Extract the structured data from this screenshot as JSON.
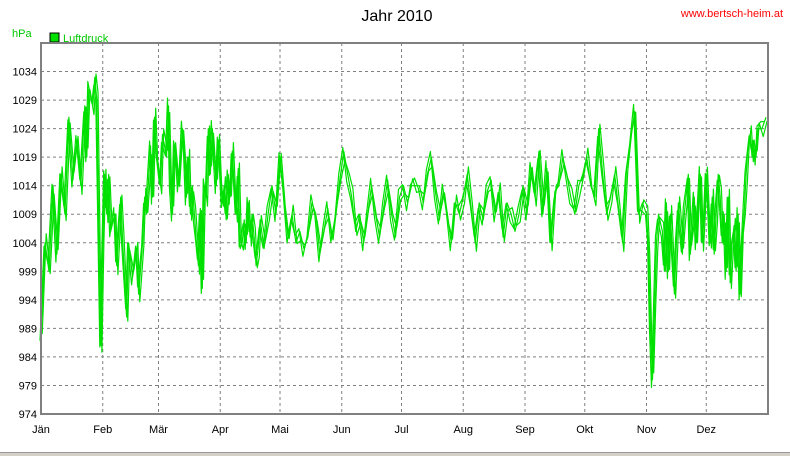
{
  "source_label": "www.bertsch-heim.at",
  "colors": {
    "series": "#00e000",
    "legend_box": "#00e000",
    "legend_text": "#00c800",
    "unit": "#00c800",
    "grid": "#808080",
    "source": "#ff0000"
  },
  "chart_data": {
    "type": "line",
    "title": "Jahr 2010",
    "ylabel": "hPa",
    "xlabel": "",
    "ylim": [
      974,
      1039
    ],
    "yticks": [
      974,
      979,
      984,
      989,
      994,
      999,
      1004,
      1009,
      1014,
      1019,
      1024,
      1029,
      1034
    ],
    "xlim": [
      0,
      365
    ],
    "months": [
      {
        "label": "Jän",
        "day": 0
      },
      {
        "label": "Feb",
        "day": 31
      },
      {
        "label": "Mär",
        "day": 59
      },
      {
        "label": "Apr",
        "day": 90
      },
      {
        "label": "Mai",
        "day": 120
      },
      {
        "label": "Jun",
        "day": 151
      },
      {
        "label": "Jul",
        "day": 181
      },
      {
        "label": "Aug",
        "day": 212
      },
      {
        "label": "Sep",
        "day": 243
      },
      {
        "label": "Okt",
        "day": 273
      },
      {
        "label": "Nov",
        "day": 304
      },
      {
        "label": "Dez",
        "day": 334
      }
    ],
    "grid": true,
    "legend_placement": "top-left",
    "series": [
      {
        "name": "Luftdruck",
        "points": [
          [
            0,
            988
          ],
          [
            2,
            1004
          ],
          [
            4,
            999
          ],
          [
            6,
            1014
          ],
          [
            8,
            1002
          ],
          [
            10,
            1016
          ],
          [
            12,
            1009
          ],
          [
            14,
            1026
          ],
          [
            16,
            1015
          ],
          [
            18,
            1022
          ],
          [
            20,
            1014
          ],
          [
            22,
            1028
          ],
          [
            23,
            1019
          ],
          [
            24,
            1031
          ],
          [
            26,
            1028
          ],
          [
            27,
            1033
          ],
          [
            28,
            1029
          ],
          [
            29,
            1006
          ],
          [
            30,
            986
          ],
          [
            31,
            1003
          ],
          [
            32,
            1016
          ],
          [
            33,
            1009
          ],
          [
            34,
            1016
          ],
          [
            35,
            1006
          ],
          [
            37,
            1009
          ],
          [
            38,
            1000
          ],
          [
            40,
            1012
          ],
          [
            41,
            1004
          ],
          [
            43,
            991
          ],
          [
            44,
            1004
          ],
          [
            46,
            998
          ],
          [
            48,
            1003
          ],
          [
            49,
            995
          ],
          [
            51,
            1004
          ],
          [
            52,
            1012
          ],
          [
            53,
            1009
          ],
          [
            55,
            1021
          ],
          [
            56,
            1012
          ],
          [
            57,
            1026
          ],
          [
            58,
            1019
          ],
          [
            60,
            1014
          ],
          [
            61,
            1023
          ],
          [
            63,
            1019
          ],
          [
            64,
            1028
          ],
          [
            65,
            1014
          ],
          [
            66,
            1009
          ],
          [
            67,
            1021
          ],
          [
            68,
            1019
          ],
          [
            69,
            1014
          ],
          [
            70,
            1018
          ],
          [
            71,
            1024
          ],
          [
            72,
            1020
          ],
          [
            73,
            1012
          ],
          [
            74,
            1019
          ],
          [
            75,
            1009
          ],
          [
            76,
            1014
          ],
          [
            77,
            1009
          ],
          [
            78,
            1004
          ],
          [
            79,
            1000
          ],
          [
            80,
            1010
          ],
          [
            81,
            996
          ],
          [
            82,
            1014
          ],
          [
            83,
            1012
          ],
          [
            84,
            1024
          ],
          [
            85,
            1016
          ],
          [
            86,
            1024
          ],
          [
            87,
            1019
          ],
          [
            88,
            1014
          ],
          [
            89,
            1022
          ],
          [
            90,
            1016
          ],
          [
            91,
            1011
          ],
          [
            92,
            1014
          ],
          [
            93,
            1008
          ],
          [
            94,
            1016
          ],
          [
            95,
            1012
          ],
          [
            96,
            1020
          ],
          [
            97,
            1014
          ],
          [
            98,
            1009
          ],
          [
            99,
            1017
          ],
          [
            100,
            1003
          ],
          [
            101,
            1004
          ],
          [
            102,
            1008
          ],
          [
            103,
            1004
          ],
          [
            104,
            1011
          ],
          [
            105,
            1005
          ],
          [
            106,
            1009
          ],
          [
            107,
            1005
          ],
          [
            108,
            1000
          ],
          [
            109,
            1003
          ],
          [
            110,
            1008
          ],
          [
            112,
            1003
          ],
          [
            114,
            1009
          ],
          [
            116,
            1014
          ],
          [
            118,
            1009
          ],
          [
            120,
            1019
          ],
          [
            122,
            1012
          ],
          [
            124,
            1005
          ],
          [
            126,
            1009
          ],
          [
            128,
            1004
          ],
          [
            130,
            1006
          ],
          [
            132,
            1003
          ],
          [
            134,
            1005
          ],
          [
            136,
            1011
          ],
          [
            138,
            1009
          ],
          [
            140,
            1002
          ],
          [
            142,
            1006
          ],
          [
            144,
            1010
          ],
          [
            146,
            1005
          ],
          [
            148,
            1009
          ],
          [
            150,
            1015
          ],
          [
            152,
            1020
          ],
          [
            154,
            1016
          ],
          [
            156,
            1012
          ],
          [
            158,
            1006
          ],
          [
            160,
            1009
          ],
          [
            162,
            1004
          ],
          [
            164,
            1009
          ],
          [
            166,
            1014
          ],
          [
            168,
            1009
          ],
          [
            170,
            1005
          ],
          [
            172,
            1010
          ],
          [
            174,
            1015
          ],
          [
            176,
            1009
          ],
          [
            178,
            1005
          ],
          [
            180,
            1012
          ],
          [
            182,
            1014
          ],
          [
            184,
            1011
          ],
          [
            186,
            1014
          ],
          [
            188,
            1014
          ],
          [
            190,
            1014
          ],
          [
            192,
            1011
          ],
          [
            194,
            1016
          ],
          [
            196,
            1019
          ],
          [
            198,
            1013
          ],
          [
            200,
            1008
          ],
          [
            202,
            1013
          ],
          [
            204,
            1009
          ],
          [
            206,
            1004
          ],
          [
            208,
            1011
          ],
          [
            210,
            1009
          ],
          [
            212,
            1012
          ],
          [
            214,
            1016
          ],
          [
            216,
            1010
          ],
          [
            218,
            1004
          ],
          [
            220,
            1011
          ],
          [
            222,
            1008
          ],
          [
            224,
            1013
          ],
          [
            226,
            1015
          ],
          [
            228,
            1009
          ],
          [
            230,
            1013
          ],
          [
            232,
            1005
          ],
          [
            234,
            1011
          ],
          [
            236,
            1009
          ],
          [
            238,
            1006
          ],
          [
            240,
            1009
          ],
          [
            242,
            1014
          ],
          [
            244,
            1009
          ],
          [
            246,
            1017
          ],
          [
            248,
            1012
          ],
          [
            250,
            1020
          ],
          [
            252,
            1009
          ],
          [
            254,
            1017
          ],
          [
            256,
            1004
          ],
          [
            258,
            1013
          ],
          [
            260,
            1014
          ],
          [
            262,
            1019
          ],
          [
            264,
            1016
          ],
          [
            266,
            1012
          ],
          [
            268,
            1009
          ],
          [
            270,
            1014
          ],
          [
            272,
            1016
          ],
          [
            274,
            1019
          ],
          [
            276,
            1014
          ],
          [
            278,
            1012
          ],
          [
            280,
            1024
          ],
          [
            282,
            1016
          ],
          [
            284,
            1009
          ],
          [
            286,
            1012
          ],
          [
            288,
            1016
          ],
          [
            290,
            1010
          ],
          [
            292,
            1004
          ],
          [
            294,
            1017
          ],
          [
            296,
            1022
          ],
          [
            298,
            1027
          ],
          [
            300,
            1009
          ],
          [
            302,
            1011
          ],
          [
            304,
            1009
          ],
          [
            305,
            1003
          ],
          [
            306,
            989
          ],
          [
            307,
            980
          ],
          [
            308,
            992
          ],
          [
            309,
            1004
          ],
          [
            310,
            1009
          ],
          [
            312,
            1006
          ],
          [
            313,
            999
          ],
          [
            314,
            1011
          ],
          [
            315,
            999
          ],
          [
            316,
            1009
          ],
          [
            318,
            995
          ],
          [
            319,
            1004
          ],
          [
            320,
            1011
          ],
          [
            322,
            1002
          ],
          [
            323,
            1009
          ],
          [
            325,
            1016
          ],
          [
            326,
            1002
          ],
          [
            327,
            1006
          ],
          [
            328,
            1012
          ],
          [
            329,
            1004
          ],
          [
            330,
            1011
          ],
          [
            331,
            1016
          ],
          [
            332,
            1004
          ],
          [
            333,
            1009
          ],
          [
            334,
            1016
          ],
          [
            335,
            1010
          ],
          [
            336,
            1004
          ],
          [
            337,
            1012
          ],
          [
            338,
            1002
          ],
          [
            339,
            1009
          ],
          [
            340,
            1016
          ],
          [
            341,
            1012
          ],
          [
            342,
            1004
          ],
          [
            343,
            1009
          ],
          [
            344,
            999
          ],
          [
            345,
            1012
          ],
          [
            346,
            997
          ],
          [
            347,
            1004
          ],
          [
            348,
            1007
          ],
          [
            349,
            999
          ],
          [
            350,
            1009
          ],
          [
            351,
            995
          ],
          [
            352,
            1004
          ],
          [
            353,
            1009
          ],
          [
            354,
            1016
          ],
          [
            355,
            1021
          ],
          [
            356,
            1023
          ],
          [
            357,
            1019
          ],
          [
            358,
            1022
          ],
          [
            359,
            1019
          ],
          [
            360,
            1024
          ],
          [
            362,
            1024
          ],
          [
            364,
            1026
          ]
        ]
      }
    ]
  }
}
